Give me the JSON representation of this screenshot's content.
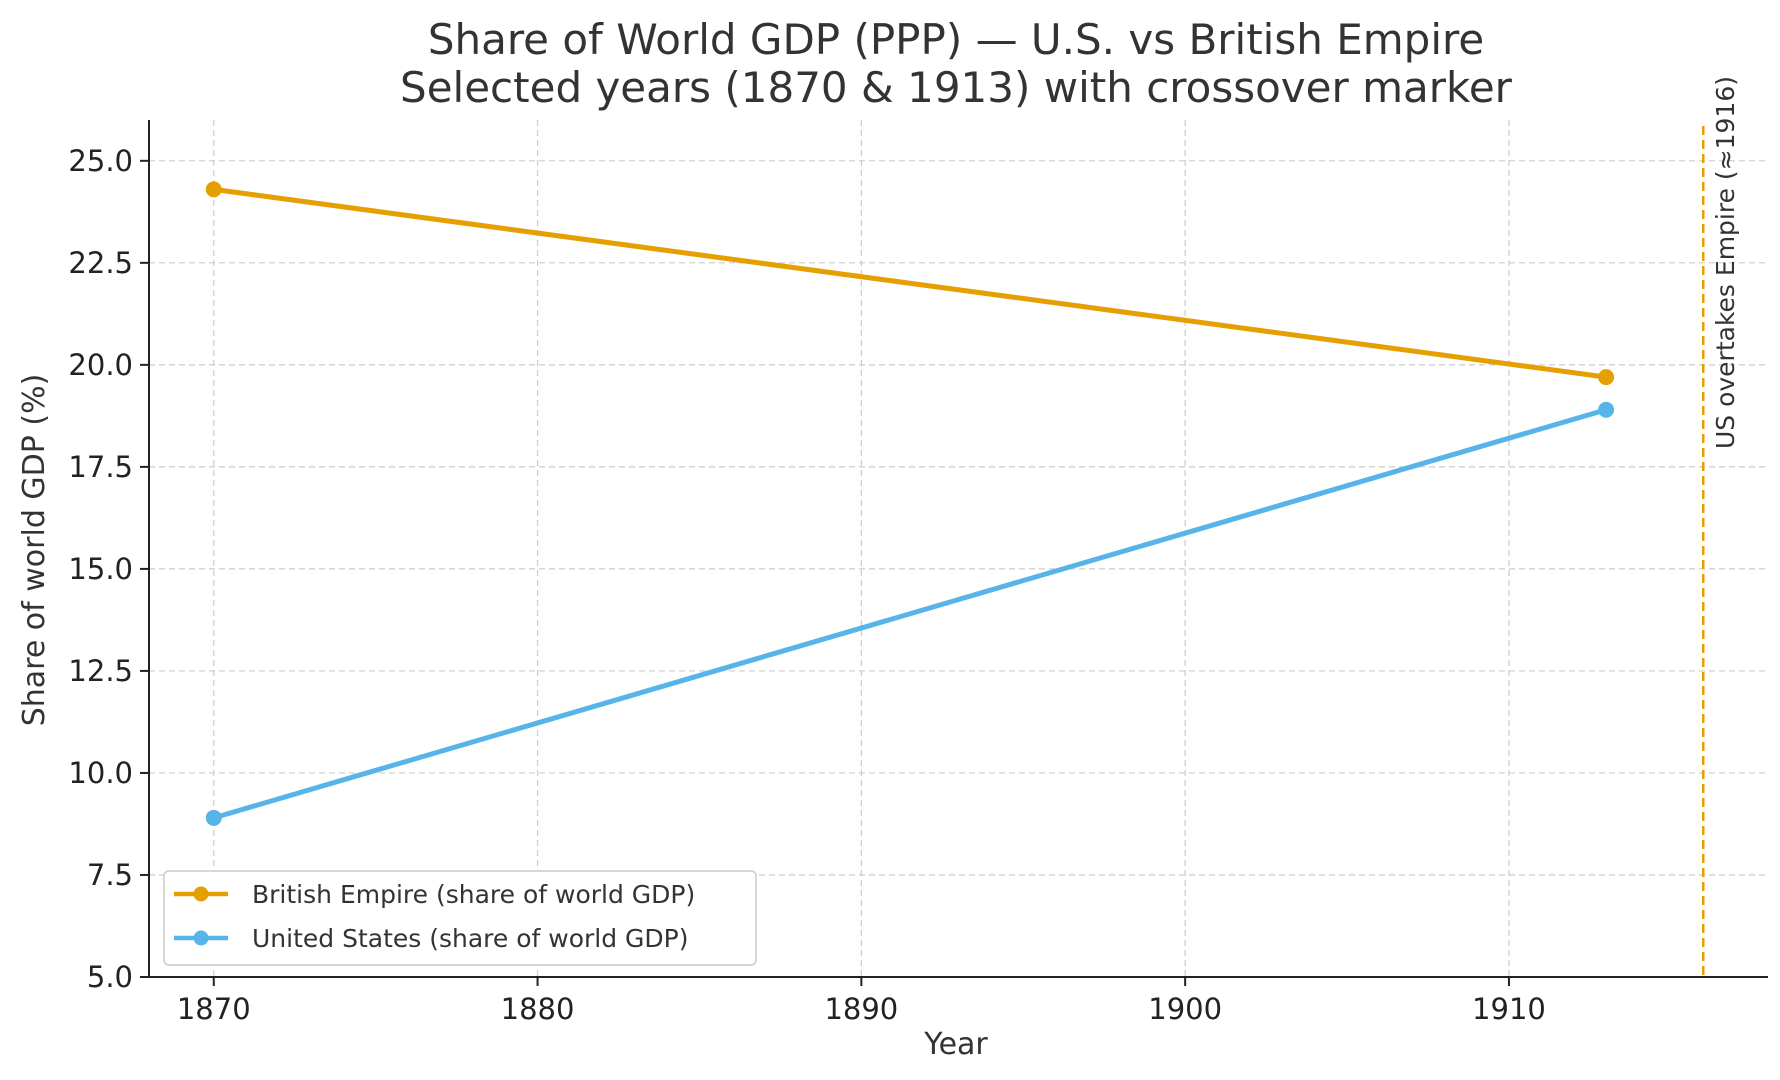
{
  "chart_data": {
    "type": "line",
    "title": "Share of World GDP (PPP) — U.S. vs British Empire",
    "subtitle": "Selected years (1870 & 1913) with crossover marker",
    "xlabel": "Year",
    "ylabel": "Share of world GDP (%)",
    "xlim": [
      1868,
      1918
    ],
    "ylim": [
      5.0,
      26.0
    ],
    "x_ticks": [
      1870,
      1880,
      1890,
      1900,
      1910
    ],
    "y_ticks": [
      5.0,
      7.5,
      10.0,
      12.5,
      15.0,
      17.5,
      20.0,
      22.5,
      25.0
    ],
    "x_tick_labels": [
      "1870",
      "1880",
      "1890",
      "1900",
      "1910"
    ],
    "y_tick_labels": [
      "5.0",
      "7.5",
      "10.0",
      "12.5",
      "15.0",
      "17.5",
      "20.0",
      "22.5",
      "25.0"
    ],
    "grid": true,
    "legend_position": "lower-left",
    "series": [
      {
        "name": "British Empire (share of world GDP)",
        "color": "#E69F00",
        "x": [
          1870,
          1913
        ],
        "y": [
          24.3,
          19.7
        ]
      },
      {
        "name": "United States (share of world GDP)",
        "color": "#56B4E9",
        "x": [
          1870,
          1913
        ],
        "y": [
          8.9,
          18.9
        ]
      }
    ],
    "annotations": [
      {
        "type": "vline",
        "x": 1916,
        "color": "#E69F00",
        "label": "US overtakes Empire (≈1916)"
      }
    ]
  }
}
